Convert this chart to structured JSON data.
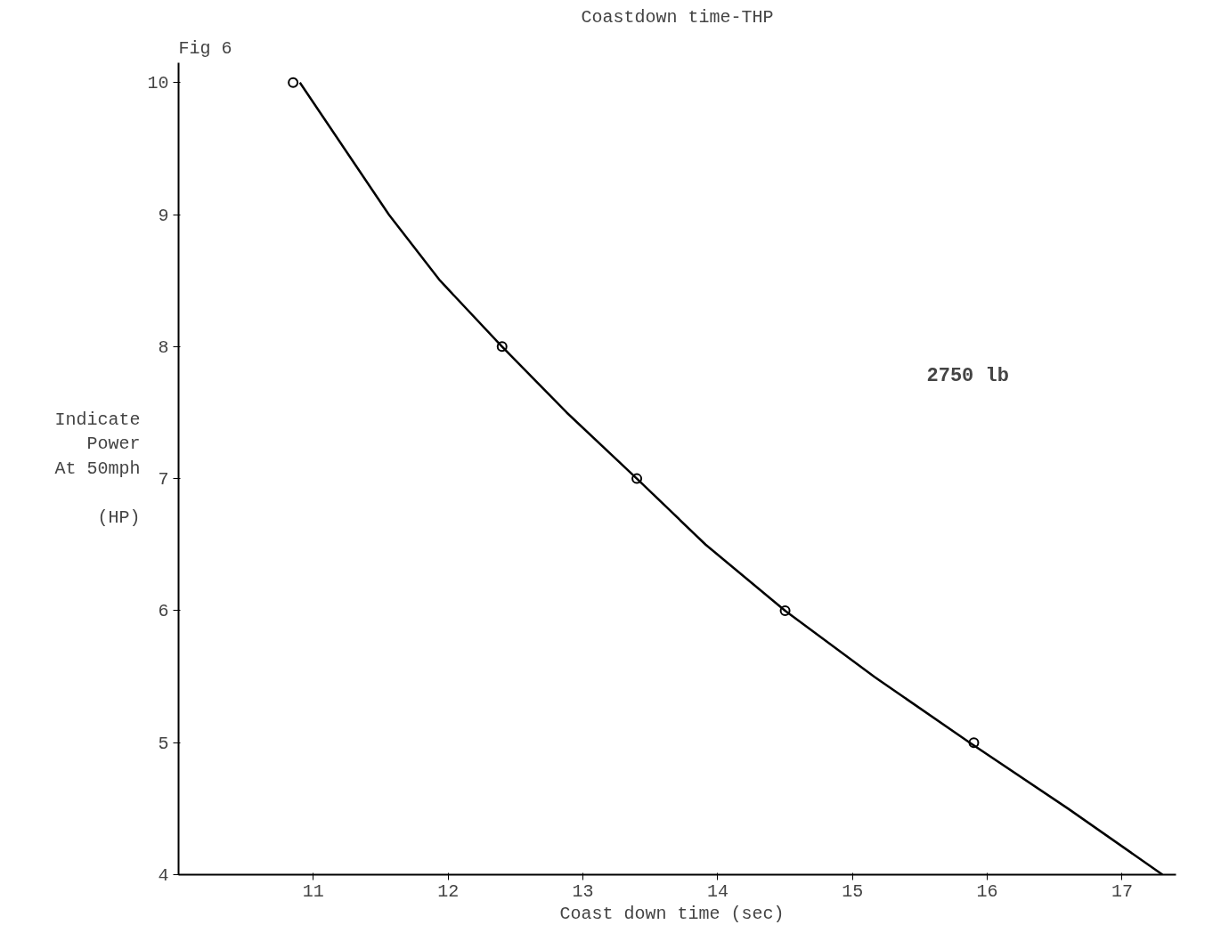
{
  "chart_data": {
    "type": "line",
    "title": "Coastdown time-THP",
    "xlabel": "Coast down time  (sec)",
    "ylabel": "Indicate\nPower\nAt 50mph\n\n(HP)",
    "annotations": [
      "Fig 6",
      "2750 lb"
    ],
    "series": [
      {
        "type": "scatter",
        "color": "#000000",
        "x": [
          10.85,
          12.4,
          13.4,
          14.5,
          15.9
        ],
        "values": [
          10,
          8,
          7,
          6,
          5
        ]
      },
      {
        "color": "#000000",
        "marker": "none",
        "x": [
          10.9,
          11.56,
          11.94,
          12.4,
          12.88,
          13.4,
          13.91,
          14.5,
          15.16,
          15.87,
          16.6,
          17.3
        ],
        "values": [
          10,
          9,
          8.5,
          8,
          7.5,
          7,
          6.5,
          6,
          5.5,
          5,
          4.5,
          4
        ]
      }
    ],
    "xlim": [
      10,
      17.4
    ],
    "ylim": [
      4,
      10.15
    ],
    "xticks": [
      11,
      12,
      13,
      14,
      15,
      16,
      17
    ],
    "yticks": [
      4,
      5,
      6,
      7,
      8,
      9,
      10
    ],
    "grid": false
  }
}
